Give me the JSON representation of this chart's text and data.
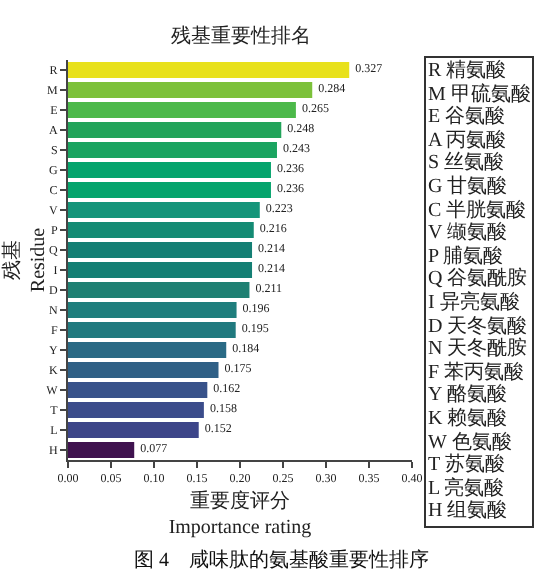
{
  "chart_data": {
    "type": "bar",
    "orientation": "horizontal",
    "title": "残基重要性排名",
    "xlabel": "重要度评分\nImportance rating",
    "ylabel": "残基\nResidue",
    "categories": [
      "R",
      "M",
      "E",
      "A",
      "S",
      "G",
      "C",
      "V",
      "P",
      "Q",
      "I",
      "D",
      "N",
      "F",
      "Y",
      "K",
      "W",
      "T",
      "L",
      "H"
    ],
    "values": [
      0.327,
      0.284,
      0.265,
      0.248,
      0.243,
      0.236,
      0.236,
      0.223,
      0.216,
      0.214,
      0.214,
      0.211,
      0.196,
      0.195,
      0.184,
      0.175,
      0.162,
      0.158,
      0.152,
      0.077
    ],
    "colors": [
      "#e8e11c",
      "#7cc13a",
      "#4cb94a",
      "#22a45a",
      "#1aa460",
      "#05a46c",
      "#05a46c",
      "#15957a",
      "#148b74",
      "#147f74",
      "#147f74",
      "#1f8073",
      "#1f7e7d",
      "#217a7f",
      "#2a6a85",
      "#2f6086",
      "#38528a",
      "#3b4c8b",
      "#3d4589",
      "#40124f"
    ],
    "xlim": [
      0,
      0.4
    ],
    "xticks": [
      {
        "value": 0,
        "label": "0.00"
      },
      {
        "value": 0.05,
        "label": "0.05"
      },
      {
        "value": 0.1,
        "label": "0.10"
      },
      {
        "value": 0.15,
        "label": "0.15"
      },
      {
        "value": 0.2,
        "label": "0.20"
      },
      {
        "value": 0.25,
        "label": "0.25"
      },
      {
        "value": 0.3,
        "label": "0.30"
      },
      {
        "value": 0.35,
        "label": "0.35"
      },
      {
        "value": 0.4,
        "label": "0.40"
      }
    ],
    "data_labels": true,
    "grid": false,
    "legend": false,
    "annotations": [
      "R 精氨酸",
      "M 甲硫氨酸",
      "E 谷氨酸",
      "A 丙氨酸",
      "S 丝氨酸",
      "G 甘氨酸",
      "C 半胱氨酸",
      "V 缬氨酸",
      "P 脯氨酸",
      "Q 谷氨酰胺",
      "I 异亮氨酸",
      "D 天冬氨酸",
      "N 天冬酰胺",
      "F 苯丙氨酸",
      "Y 酪氨酸",
      "K 赖氨酸",
      "W 色氨酸",
      "T 苏氨酸",
      "L 亮氨酸",
      "H 组氨酸",
      "图 4　咸味肽的氨基酸重要性排序"
    ]
  }
}
